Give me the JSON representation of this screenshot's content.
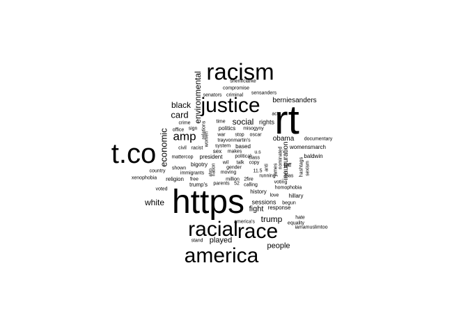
{
  "cloud": {
    "words": [
      {
        "text": "https",
        "size": 48
      },
      {
        "text": "rt",
        "size": 58
      },
      {
        "text": "t.co",
        "size": 40
      },
      {
        "text": "racism",
        "size": 33
      },
      {
        "text": "justice",
        "size": 30
      },
      {
        "text": "racial",
        "size": 30
      },
      {
        "text": "race",
        "size": 30
      },
      {
        "text": "america",
        "size": 30
      },
      {
        "text": "amp",
        "size": 17
      },
      {
        "text": "environmental",
        "size": 12,
        "vertical": true
      },
      {
        "text": "economic",
        "size": 13,
        "vertical": true
      },
      {
        "text": "social",
        "size": 12
      },
      {
        "text": "card",
        "size": 13
      },
      {
        "text": "black",
        "size": 12
      },
      {
        "text": "white",
        "size": 12
      },
      {
        "text": "trump",
        "size": 12
      },
      {
        "text": "fight",
        "size": 11
      },
      {
        "text": "people",
        "size": 11
      },
      {
        "text": "played",
        "size": 11
      },
      {
        "text": "obama",
        "size": 10
      },
      {
        "text": "berniesanders",
        "size": 10
      },
      {
        "text": "sessions",
        "size": 9
      },
      {
        "text": "inauguration",
        "size": 10,
        "vertical": true
      },
      {
        "text": "rights",
        "size": 9
      },
      {
        "text": "politics",
        "size": 8
      },
      {
        "text": "sheriffclarke",
        "size": 7
      },
      {
        "text": "compromise",
        "size": 7
      },
      {
        "text": "senators",
        "size": 7
      },
      {
        "text": "criminal",
        "size": 7
      },
      {
        "text": "sensanders",
        "size": 7
      },
      {
        "text": "act",
        "size": 7
      },
      {
        "text": "time",
        "size": 7
      },
      {
        "text": "misogyny",
        "size": 7
      },
      {
        "text": "crime",
        "size": 7
      },
      {
        "text": "sign",
        "size": 7
      },
      {
        "text": "office",
        "size": 7
      },
      {
        "text": "war",
        "size": 7
      },
      {
        "text": "stop",
        "size": 7
      },
      {
        "text": "oscar",
        "size": 7
      },
      {
        "text": "trayvonmartin's",
        "size": 7
      },
      {
        "text": "documentary",
        "size": 7
      },
      {
        "text": "womensmarch",
        "size": 8
      },
      {
        "text": "system",
        "size": 7
      },
      {
        "text": "based",
        "size": 8
      },
      {
        "text": "civil",
        "size": 7
      },
      {
        "text": "racist",
        "size": 7
      },
      {
        "text": "sex",
        "size": 8
      },
      {
        "text": "makes",
        "size": 7
      },
      {
        "text": "u.s",
        "size": 7
      },
      {
        "text": "mattercop",
        "size": 7
      },
      {
        "text": "president",
        "size": 8
      },
      {
        "text": "political",
        "size": 7
      },
      {
        "text": "class",
        "size": 7
      },
      {
        "text": "baldwin",
        "size": 8
      },
      {
        "text": "bigotry",
        "size": 8
      },
      {
        "text": "wil",
        "size": 7
      },
      {
        "text": "talk",
        "size": 7
      },
      {
        "text": "copy",
        "size": 7
      },
      {
        "text": "jeff",
        "size": 8
      },
      {
        "text": "country",
        "size": 7
      },
      {
        "text": "shown",
        "size": 7
      },
      {
        "text": "gender",
        "size": 7
      },
      {
        "text": "immigrants",
        "size": 7
      },
      {
        "text": "moving",
        "size": 7
      },
      {
        "text": "11.5",
        "size": 7
      },
      {
        "text": "bias",
        "size": 7
      },
      {
        "text": "xenophobia",
        "size": 7
      },
      {
        "text": "religion",
        "size": 8
      },
      {
        "text": "free",
        "size": 7
      },
      {
        "text": "million",
        "size": 7
      },
      {
        "text": "2fire",
        "size": 7
      },
      {
        "text": "running",
        "size": 7
      },
      {
        "text": "trump's",
        "size": 8
      },
      {
        "text": "parents",
        "size": 7
      },
      {
        "text": "52",
        "size": 7
      },
      {
        "text": "calling",
        "size": 7
      },
      {
        "text": "voting",
        "size": 7
      },
      {
        "text": "homophobia",
        "size": 7
      },
      {
        "text": "voted",
        "size": 7
      },
      {
        "text": "history",
        "size": 8
      },
      {
        "text": "love",
        "size": 7
      },
      {
        "text": "hillary",
        "size": 8
      },
      {
        "text": "begun",
        "size": 7
      },
      {
        "text": "equality",
        "size": 7
      },
      {
        "text": "response",
        "size": 8
      },
      {
        "text": "hate",
        "size": 7
      },
      {
        "text": "america's",
        "size": 7
      },
      {
        "text": "iamamuslimtoo",
        "size": 7
      },
      {
        "text": "stand",
        "size": 7
      },
      {
        "text": "relations",
        "size": 7,
        "vertical": true
      },
      {
        "text": "women",
        "size": 7,
        "vertical": true
      },
      {
        "text": "nation",
        "size": 7,
        "vertical": true
      },
      {
        "text": "ahm",
        "size": 6,
        "vertical": true
      },
      {
        "text": "anti",
        "size": 7,
        "vertical": true
      },
      {
        "text": "james",
        "size": 7,
        "vertical": true
      },
      {
        "text": "nominated",
        "size": 7,
        "vertical": true
      },
      {
        "text": "hashtags",
        "size": 7,
        "vertical": true
      },
      {
        "text": "sexism",
        "size": 7,
        "vertical": true
      }
    ]
  }
}
